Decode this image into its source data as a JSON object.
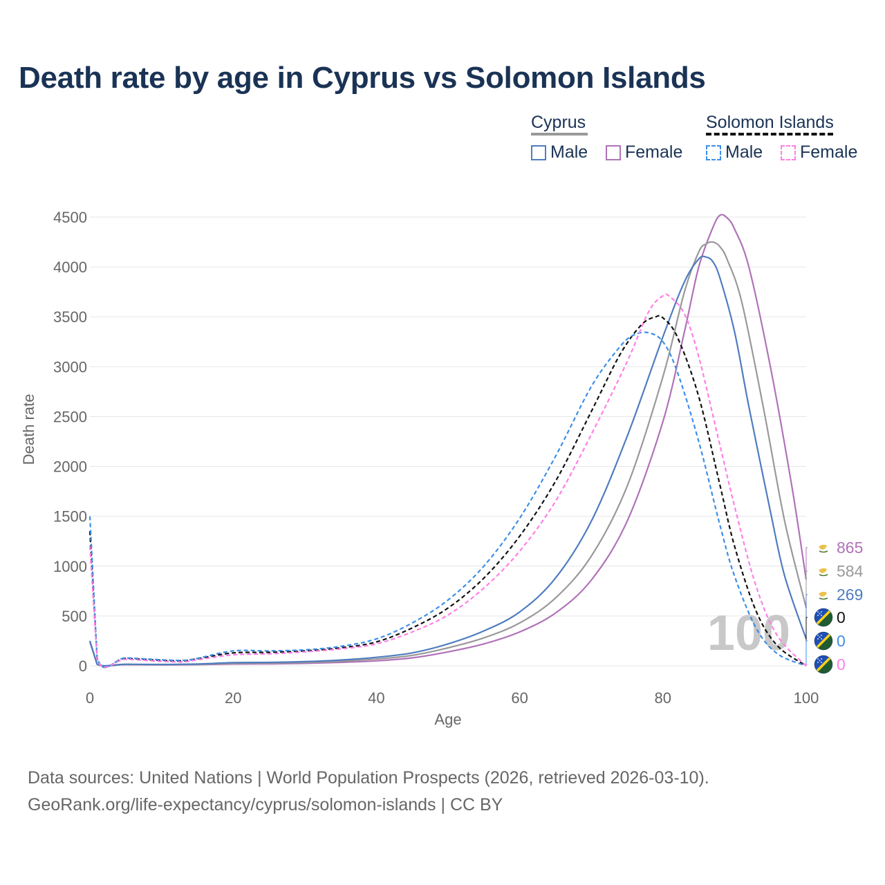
{
  "title": "Death rate by age in Cyprus vs Solomon Islands",
  "legend": {
    "groups": [
      {
        "country": "Cyprus",
        "line_color": "#999999",
        "line_style": "solid",
        "items": [
          {
            "label": "Male",
            "color": "#4f7cc0",
            "style": "solid"
          },
          {
            "label": "Female",
            "color": "#b072b8",
            "style": "solid"
          }
        ]
      },
      {
        "country": "Solomon Islands",
        "line_color": "#111111",
        "line_style": "dashed",
        "items": [
          {
            "label": "Male",
            "color": "#3d8ee8",
            "style": "dashed"
          },
          {
            "label": "Female",
            "color": "#ff7ee6",
            "style": "dashed"
          }
        ]
      }
    ]
  },
  "source": {
    "line1": "Data sources: United Nations | World Population Prospects (2026, retrieved 2026-03-10).",
    "line2": "GeoRank.org/life-expectancy/cyprus/solomon-islands | CC BY"
  },
  "chart_data": {
    "type": "line",
    "xlabel": "Age",
    "ylabel": "Death rate",
    "xlim": [
      0,
      100
    ],
    "ylim": [
      0,
      4500
    ],
    "xticks": [
      0,
      20,
      40,
      60,
      80,
      100
    ],
    "yticks": [
      0,
      500,
      1000,
      1500,
      2000,
      2500,
      3000,
      3500,
      4000,
      4500
    ],
    "grid": true,
    "watermark": "100",
    "series": [
      {
        "name": "Cyprus Female",
        "color": "#b072b8",
        "dash": false,
        "end_value": "865",
        "points": [
          [
            0,
            240
          ],
          [
            1,
            15
          ],
          [
            5,
            12
          ],
          [
            10,
            10
          ],
          [
            15,
            12
          ],
          [
            20,
            18
          ],
          [
            25,
            20
          ],
          [
            30,
            25
          ],
          [
            35,
            35
          ],
          [
            40,
            50
          ],
          [
            45,
            80
          ],
          [
            50,
            140
          ],
          [
            55,
            220
          ],
          [
            60,
            340
          ],
          [
            65,
            530
          ],
          [
            70,
            860
          ],
          [
            75,
            1450
          ],
          [
            80,
            2450
          ],
          [
            83,
            3350
          ],
          [
            85,
            4000
          ],
          [
            87,
            4400
          ],
          [
            88,
            4520
          ],
          [
            89,
            4490
          ],
          [
            90,
            4380
          ],
          [
            92,
            4000
          ],
          [
            95,
            3000
          ],
          [
            98,
            1800
          ],
          [
            100,
            865
          ]
        ]
      },
      {
        "name": "Cyprus Total",
        "color": "#999999",
        "dash": false,
        "end_value": "584",
        "points": [
          [
            0,
            245
          ],
          [
            1,
            16
          ],
          [
            5,
            14
          ],
          [
            10,
            12
          ],
          [
            15,
            15
          ],
          [
            20,
            25
          ],
          [
            25,
            28
          ],
          [
            30,
            34
          ],
          [
            35,
            46
          ],
          [
            40,
            68
          ],
          [
            45,
            105
          ],
          [
            50,
            180
          ],
          [
            55,
            280
          ],
          [
            60,
            430
          ],
          [
            65,
            680
          ],
          [
            70,
            1100
          ],
          [
            75,
            1800
          ],
          [
            80,
            2900
          ],
          [
            83,
            3750
          ],
          [
            85,
            4150
          ],
          [
            86,
            4230
          ],
          [
            87,
            4250
          ],
          [
            88,
            4200
          ],
          [
            89,
            4070
          ],
          [
            91,
            3650
          ],
          [
            94,
            2600
          ],
          [
            97,
            1450
          ],
          [
            100,
            584
          ]
        ]
      },
      {
        "name": "Cyprus Male",
        "color": "#4f7cc0",
        "dash": false,
        "end_value": "269",
        "points": [
          [
            0,
            250
          ],
          [
            1,
            18
          ],
          [
            5,
            16
          ],
          [
            10,
            14
          ],
          [
            15,
            18
          ],
          [
            20,
            32
          ],
          [
            25,
            35
          ],
          [
            30,
            42
          ],
          [
            35,
            58
          ],
          [
            40,
            85
          ],
          [
            45,
            130
          ],
          [
            50,
            220
          ],
          [
            55,
            350
          ],
          [
            60,
            540
          ],
          [
            65,
            880
          ],
          [
            70,
            1450
          ],
          [
            75,
            2300
          ],
          [
            80,
            3300
          ],
          [
            83,
            3850
          ],
          [
            85,
            4080
          ],
          [
            86,
            4100
          ],
          [
            87,
            4050
          ],
          [
            88,
            3880
          ],
          [
            90,
            3350
          ],
          [
            92,
            2600
          ],
          [
            95,
            1550
          ],
          [
            97,
            900
          ],
          [
            100,
            269
          ]
        ]
      },
      {
        "name": "Solomon Islands Total",
        "color": "#111111",
        "dash": true,
        "end_value": "0",
        "points": [
          [
            0,
            1350
          ],
          [
            1,
            80
          ],
          [
            5,
            75
          ],
          [
            10,
            55
          ],
          [
            13,
            50
          ],
          [
            15,
            70
          ],
          [
            20,
            130
          ],
          [
            25,
            135
          ],
          [
            30,
            150
          ],
          [
            35,
            180
          ],
          [
            40,
            240
          ],
          [
            45,
            380
          ],
          [
            50,
            580
          ],
          [
            55,
            880
          ],
          [
            60,
            1300
          ],
          [
            65,
            1850
          ],
          [
            70,
            2550
          ],
          [
            74,
            3120
          ],
          [
            77,
            3420
          ],
          [
            79,
            3500
          ],
          [
            80,
            3490
          ],
          [
            82,
            3300
          ],
          [
            85,
            2700
          ],
          [
            88,
            1800
          ],
          [
            90,
            1200
          ],
          [
            93,
            550
          ],
          [
            96,
            200
          ],
          [
            100,
            0
          ]
        ]
      },
      {
        "name": "Solomon Islands Male",
        "color": "#3d8ee8",
        "dash": true,
        "end_value": "0",
        "points": [
          [
            0,
            1500
          ],
          [
            1,
            90
          ],
          [
            5,
            80
          ],
          [
            10,
            60
          ],
          [
            13,
            55
          ],
          [
            15,
            75
          ],
          [
            20,
            150
          ],
          [
            25,
            150
          ],
          [
            30,
            160
          ],
          [
            35,
            195
          ],
          [
            40,
            270
          ],
          [
            45,
            430
          ],
          [
            50,
            660
          ],
          [
            55,
            1000
          ],
          [
            60,
            1480
          ],
          [
            65,
            2100
          ],
          [
            70,
            2800
          ],
          [
            74,
            3200
          ],
          [
            76,
            3320
          ],
          [
            78,
            3340
          ],
          [
            80,
            3250
          ],
          [
            82,
            2950
          ],
          [
            85,
            2250
          ],
          [
            88,
            1400
          ],
          [
            90,
            900
          ],
          [
            93,
            380
          ],
          [
            96,
            120
          ],
          [
            100,
            0
          ]
        ]
      },
      {
        "name": "Solomon Islands Female",
        "color": "#ff7ee6",
        "dash": true,
        "end_value": "0",
        "points": [
          [
            0,
            1200
          ],
          [
            1,
            70
          ],
          [
            5,
            65
          ],
          [
            10,
            45
          ],
          [
            13,
            40
          ],
          [
            15,
            60
          ],
          [
            20,
            110
          ],
          [
            25,
            120
          ],
          [
            30,
            140
          ],
          [
            35,
            170
          ],
          [
            40,
            220
          ],
          [
            45,
            340
          ],
          [
            50,
            510
          ],
          [
            55,
            780
          ],
          [
            60,
            1150
          ],
          [
            65,
            1650
          ],
          [
            70,
            2320
          ],
          [
            75,
            3050
          ],
          [
            78,
            3550
          ],
          [
            80,
            3710
          ],
          [
            81,
            3700
          ],
          [
            83,
            3530
          ],
          [
            85,
            3100
          ],
          [
            88,
            2200
          ],
          [
            90,
            1600
          ],
          [
            93,
            800
          ],
          [
            96,
            300
          ],
          [
            100,
            0
          ]
        ]
      }
    ]
  }
}
